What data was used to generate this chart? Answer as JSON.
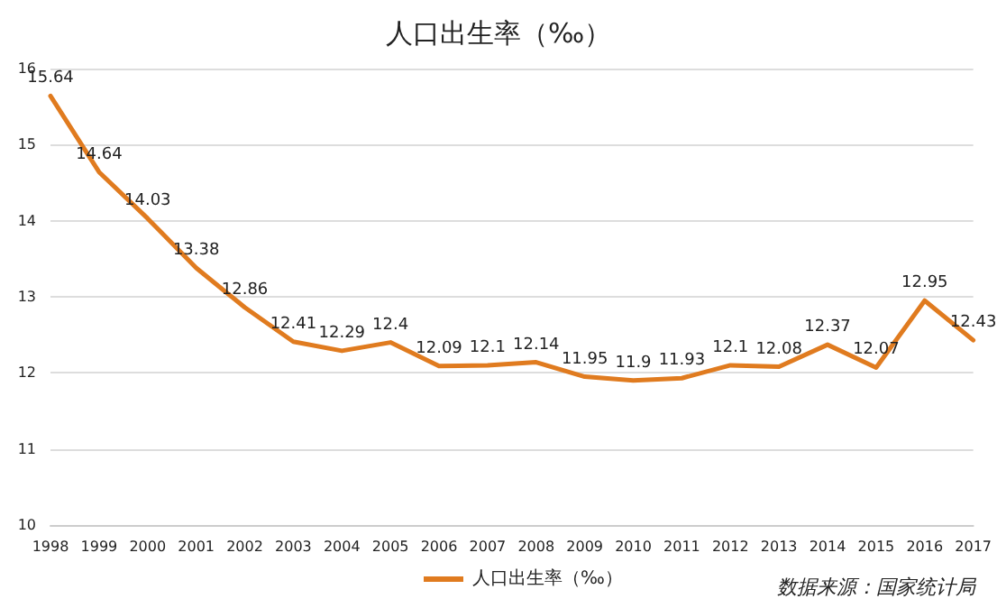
{
  "chart_data": {
    "type": "line",
    "title": "人口出生率（‰）",
    "categories": [
      "1998",
      "1999",
      "2000",
      "2001",
      "2002",
      "2003",
      "2004",
      "2005",
      "2006",
      "2007",
      "2008",
      "2009",
      "2010",
      "2011",
      "2012",
      "2013",
      "2014",
      "2015",
      "2016",
      "2017"
    ],
    "series": [
      {
        "name": "人口出生率（‰）",
        "color": "#e07b1f",
        "values": [
          15.64,
          14.64,
          14.03,
          13.38,
          12.86,
          12.41,
          12.29,
          12.4,
          12.09,
          12.1,
          12.14,
          11.95,
          11.9,
          11.93,
          12.1,
          12.08,
          12.37,
          12.07,
          12.95,
          12.43
        ]
      }
    ],
    "ylim": [
      10,
      16
    ],
    "yticks": [
      10,
      11,
      12,
      13,
      14,
      15,
      16
    ],
    "grid": "y",
    "legend": "bottom left",
    "data_labels": true,
    "marker": "none",
    "line_style": "solid",
    "annotations": [
      "数据来源：国家统计局"
    ]
  }
}
